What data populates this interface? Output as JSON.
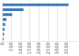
{
  "chart_data": {
    "type": "bar",
    "orientation": "horizontal",
    "categories": [
      null,
      null,
      null,
      null,
      null,
      null,
      null,
      null
    ],
    "values": [
      3600,
      1150,
      530,
      220,
      160,
      120,
      95,
      70
    ],
    "color": "#3a7abf",
    "xlim": [
      0,
      4000
    ],
    "xticks": [
      0,
      500,
      1000,
      1500,
      2000,
      2500,
      3000,
      3500
    ],
    "grid": true,
    "tick_labels": "x"
  }
}
